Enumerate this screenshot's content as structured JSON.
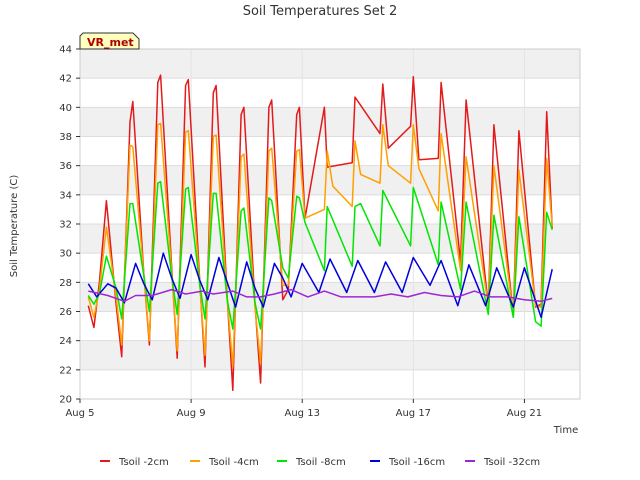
{
  "chart_data": {
    "type": "line",
    "title": "Soil Temperatures Set 2",
    "xlabel": "Time",
    "ylabel": "Soil Temperature (C)",
    "badge": "VR_met",
    "ylim": [
      20,
      44
    ],
    "xlim": [
      0,
      18
    ],
    "x_tick_labels": [
      {
        "x": 0,
        "label": "Aug 5"
      },
      {
        "x": 4,
        "label": "Aug 9"
      },
      {
        "x": 8,
        "label": "Aug 13"
      },
      {
        "x": 12,
        "label": "Aug 17"
      },
      {
        "x": 16,
        "label": "Aug 21"
      }
    ],
    "y_ticks": [
      20,
      22,
      24,
      26,
      28,
      30,
      32,
      34,
      36,
      38,
      40,
      42,
      44
    ],
    "grid": true,
    "legend_position": "bottom",
    "series": [
      {
        "name": "Tsoil -2cm",
        "color": "#e31a1c",
        "points": [
          [
            0.3,
            26.4
          ],
          [
            0.5,
            24.9
          ],
          [
            0.7,
            28
          ],
          [
            0.95,
            33.6
          ],
          [
            1.3,
            26.5
          ],
          [
            1.5,
            22.9
          ],
          [
            1.8,
            39
          ],
          [
            1.9,
            40.4
          ],
          [
            2.3,
            28.5
          ],
          [
            2.5,
            23.7
          ],
          [
            2.8,
            41.7
          ],
          [
            2.9,
            42.2
          ],
          [
            3.3,
            29
          ],
          [
            3.5,
            22.8
          ],
          [
            3.8,
            41.5
          ],
          [
            3.9,
            41.9
          ],
          [
            4.3,
            28.5
          ],
          [
            4.5,
            22.2
          ],
          [
            4.8,
            41
          ],
          [
            4.9,
            41.5
          ],
          [
            5.3,
            27
          ],
          [
            5.5,
            20.6
          ],
          [
            5.8,
            39.5
          ],
          [
            5.9,
            40
          ],
          [
            6.3,
            26.5
          ],
          [
            6.5,
            21.1
          ],
          [
            6.8,
            40
          ],
          [
            6.9,
            40.5
          ],
          [
            7.3,
            26.8
          ],
          [
            7.5,
            27.5
          ],
          [
            7.8,
            39.5
          ],
          [
            7.9,
            40
          ],
          [
            8.1,
            32.4
          ],
          [
            8.8,
            40
          ],
          [
            8.9,
            35.9
          ],
          [
            9.8,
            36.2
          ],
          [
            9.9,
            40.7
          ],
          [
            10.8,
            38.2
          ],
          [
            10.9,
            41.6
          ],
          [
            11.1,
            37.2
          ],
          [
            11.9,
            38.7
          ],
          [
            12,
            42.1
          ],
          [
            12.2,
            36.4
          ],
          [
            12.9,
            36.5
          ],
          [
            13,
            41.7
          ],
          [
            13.7,
            29.4
          ],
          [
            13.9,
            40.5
          ],
          [
            14.7,
            26.4
          ],
          [
            14.9,
            38.8
          ],
          [
            15.6,
            25.7
          ],
          [
            15.8,
            38.4
          ],
          [
            16.4,
            26.3
          ],
          [
            16.6,
            26.5
          ],
          [
            16.8,
            39.7
          ],
          [
            17,
            31.7
          ]
        ]
      },
      {
        "name": "Tsoil -4cm",
        "color": "#ff9f00",
        "points": [
          [
            0.3,
            27
          ],
          [
            0.5,
            25.6
          ],
          [
            0.7,
            27.5
          ],
          [
            0.95,
            31.8
          ],
          [
            1.3,
            27
          ],
          [
            1.5,
            23.7
          ],
          [
            1.8,
            37.4
          ],
          [
            1.9,
            37.3
          ],
          [
            2.3,
            28.5
          ],
          [
            2.5,
            24
          ],
          [
            2.8,
            38.8
          ],
          [
            2.9,
            38.9
          ],
          [
            3.3,
            28.7
          ],
          [
            3.5,
            23.3
          ],
          [
            3.8,
            38.3
          ],
          [
            3.9,
            38.4
          ],
          [
            4.3,
            28.2
          ],
          [
            4.5,
            23
          ],
          [
            4.8,
            38
          ],
          [
            4.9,
            38.1
          ],
          [
            5.3,
            26.9
          ],
          [
            5.5,
            22.2
          ],
          [
            5.8,
            36.6
          ],
          [
            5.9,
            36.8
          ],
          [
            6.3,
            26.3
          ],
          [
            6.5,
            22.4
          ],
          [
            6.8,
            37
          ],
          [
            6.9,
            37.2
          ],
          [
            7.3,
            27.8
          ],
          [
            7.5,
            27.8
          ],
          [
            7.8,
            37
          ],
          [
            7.9,
            37.1
          ],
          [
            8.1,
            32.4
          ],
          [
            8.8,
            33
          ],
          [
            8.9,
            37
          ],
          [
            9.1,
            34.6
          ],
          [
            9.8,
            33.2
          ],
          [
            9.9,
            37.7
          ],
          [
            10.1,
            35.4
          ],
          [
            10.8,
            34.8
          ],
          [
            10.9,
            38.8
          ],
          [
            11.1,
            36
          ],
          [
            11.9,
            34.8
          ],
          [
            12,
            38.8
          ],
          [
            12.2,
            35.8
          ],
          [
            12.9,
            32.9
          ],
          [
            13,
            38.2
          ],
          [
            13.7,
            28.8
          ],
          [
            13.9,
            36.6
          ],
          [
            14.7,
            26.4
          ],
          [
            14.9,
            36
          ],
          [
            15.6,
            25.8
          ],
          [
            15.8,
            35.7
          ],
          [
            16.4,
            26.4
          ],
          [
            16.6,
            26.3
          ],
          [
            16.8,
            36.5
          ],
          [
            17,
            31.8
          ]
        ]
      },
      {
        "name": "Tsoil -8cm",
        "color": "#00e600",
        "points": [
          [
            0.3,
            27.1
          ],
          [
            0.5,
            26.5
          ],
          [
            0.7,
            27.2
          ],
          [
            0.95,
            29.8
          ],
          [
            1.3,
            27.6
          ],
          [
            1.5,
            25.5
          ],
          [
            1.8,
            33.4
          ],
          [
            1.9,
            33.4
          ],
          [
            2.3,
            28.4
          ],
          [
            2.5,
            26
          ],
          [
            2.8,
            34.8
          ],
          [
            2.9,
            34.9
          ],
          [
            3.3,
            28.4
          ],
          [
            3.5,
            25.8
          ],
          [
            3.8,
            34.4
          ],
          [
            3.9,
            34.5
          ],
          [
            4.3,
            28
          ],
          [
            4.5,
            25.5
          ],
          [
            4.8,
            34.1
          ],
          [
            4.9,
            34.1
          ],
          [
            5.3,
            26.8
          ],
          [
            5.5,
            24.8
          ],
          [
            5.8,
            32.9
          ],
          [
            5.9,
            33.1
          ],
          [
            6.3,
            26.6
          ],
          [
            6.5,
            24.8
          ],
          [
            6.8,
            33.8
          ],
          [
            6.9,
            33.6
          ],
          [
            7.3,
            29
          ],
          [
            7.5,
            28.3
          ],
          [
            7.8,
            33.9
          ],
          [
            7.9,
            33.8
          ],
          [
            8.1,
            32.1
          ],
          [
            8.8,
            28.8
          ],
          [
            8.9,
            33.2
          ],
          [
            9.8,
            29.1
          ],
          [
            9.9,
            33.2
          ],
          [
            10.1,
            33.4
          ],
          [
            10.8,
            30.5
          ],
          [
            10.9,
            34.3
          ],
          [
            11.9,
            30.5
          ],
          [
            12,
            34.5
          ],
          [
            12.9,
            29.2
          ],
          [
            13,
            33.5
          ],
          [
            13.7,
            27.5
          ],
          [
            13.9,
            33.5
          ],
          [
            14.7,
            25.8
          ],
          [
            14.9,
            32.6
          ],
          [
            15.6,
            25.6
          ],
          [
            15.8,
            32.5
          ],
          [
            16.4,
            25.3
          ],
          [
            16.6,
            25
          ],
          [
            16.8,
            32.8
          ],
          [
            17,
            31.6
          ]
        ]
      },
      {
        "name": "Tsoil -16cm",
        "color": "#0000dd",
        "points": [
          [
            0.3,
            27.9
          ],
          [
            0.6,
            27
          ],
          [
            1,
            27.9
          ],
          [
            1.3,
            27.6
          ],
          [
            1.6,
            26.6
          ],
          [
            2,
            29.3
          ],
          [
            2.3,
            27.9
          ],
          [
            2.6,
            26.8
          ],
          [
            3,
            30
          ],
          [
            3.3,
            28.3
          ],
          [
            3.6,
            26.9
          ],
          [
            4,
            29.9
          ],
          [
            4.3,
            28.2
          ],
          [
            4.6,
            26.8
          ],
          [
            5,
            29.7
          ],
          [
            5.3,
            28
          ],
          [
            5.6,
            26.3
          ],
          [
            6,
            29.4
          ],
          [
            6.3,
            27.6
          ],
          [
            6.6,
            26.3
          ],
          [
            7,
            29.3
          ],
          [
            7.3,
            28.3
          ],
          [
            7.6,
            27
          ],
          [
            8,
            29.3
          ],
          [
            8.6,
            27.3
          ],
          [
            9,
            29.6
          ],
          [
            9.6,
            27.3
          ],
          [
            10,
            29.5
          ],
          [
            10.6,
            27.3
          ],
          [
            11,
            29.4
          ],
          [
            11.6,
            27.3
          ],
          [
            12,
            29.7
          ],
          [
            12.6,
            27.8
          ],
          [
            13,
            29.5
          ],
          [
            13.6,
            26.4
          ],
          [
            14,
            29.2
          ],
          [
            14.6,
            26.4
          ],
          [
            15,
            29
          ],
          [
            15.6,
            26.3
          ],
          [
            16,
            29
          ],
          [
            16.6,
            25.6
          ],
          [
            17,
            28.9
          ]
        ]
      },
      {
        "name": "Tsoil -32cm",
        "color": "#9b27d6",
        "points": [
          [
            0.3,
            27.4
          ],
          [
            1,
            27.1
          ],
          [
            1.6,
            26.7
          ],
          [
            2,
            27.1
          ],
          [
            2.6,
            27.1
          ],
          [
            3.3,
            27.5
          ],
          [
            3.8,
            27.2
          ],
          [
            4.4,
            27.4
          ],
          [
            4.8,
            27.2
          ],
          [
            5.5,
            27.4
          ],
          [
            6,
            27
          ],
          [
            6.5,
            27
          ],
          [
            7,
            27.2
          ],
          [
            7.6,
            27.5
          ],
          [
            8.2,
            27
          ],
          [
            8.8,
            27.4
          ],
          [
            9.4,
            27
          ],
          [
            10,
            27
          ],
          [
            10.6,
            27
          ],
          [
            11.2,
            27.2
          ],
          [
            11.8,
            27
          ],
          [
            12.4,
            27.3
          ],
          [
            13,
            27.1
          ],
          [
            13.6,
            27
          ],
          [
            14.2,
            27.4
          ],
          [
            14.8,
            27
          ],
          [
            15.4,
            27
          ],
          [
            16,
            26.8
          ],
          [
            16.6,
            26.7
          ],
          [
            17,
            26.9
          ]
        ]
      }
    ]
  }
}
